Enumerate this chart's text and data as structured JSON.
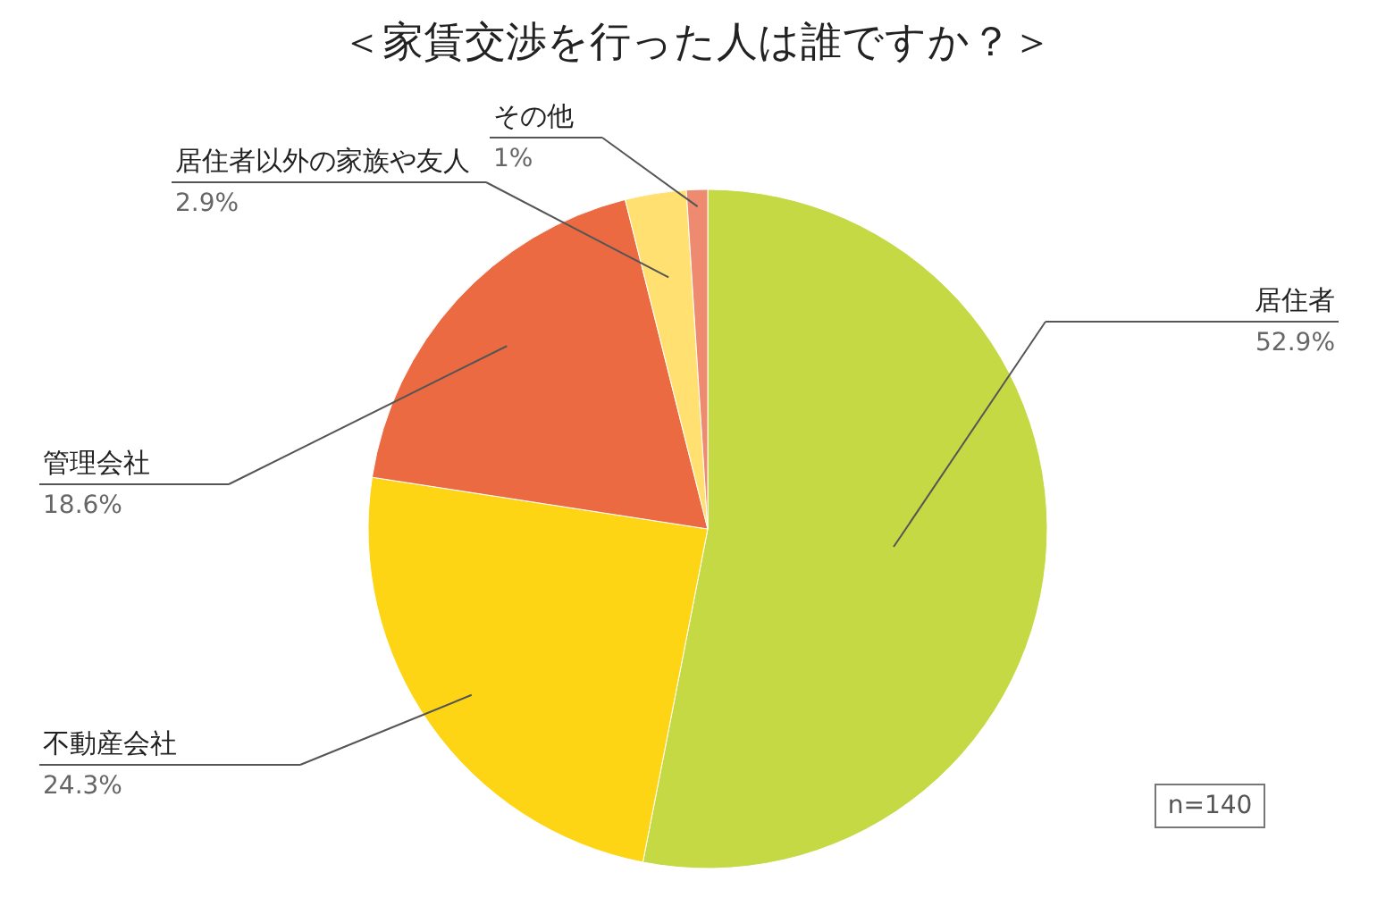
{
  "chart_data": {
    "type": "pie",
    "title": "＜家賃交渉を行った人は誰ですか？＞",
    "categories": [
      "居住者",
      "不動産会社",
      "管理会社",
      "居住者以外の家族や友人",
      "その他"
    ],
    "values": [
      52.9,
      24.3,
      18.6,
      2.9,
      1
    ],
    "colors": [
      "#c4d944",
      "#fdd515",
      "#ec6a42",
      "#ffe070",
      "#ed8a70"
    ],
    "value_labels": [
      "52.9%",
      "24.3%",
      "18.6%",
      "2.9%",
      "1%"
    ],
    "annotations": [
      "n=140"
    ]
  }
}
